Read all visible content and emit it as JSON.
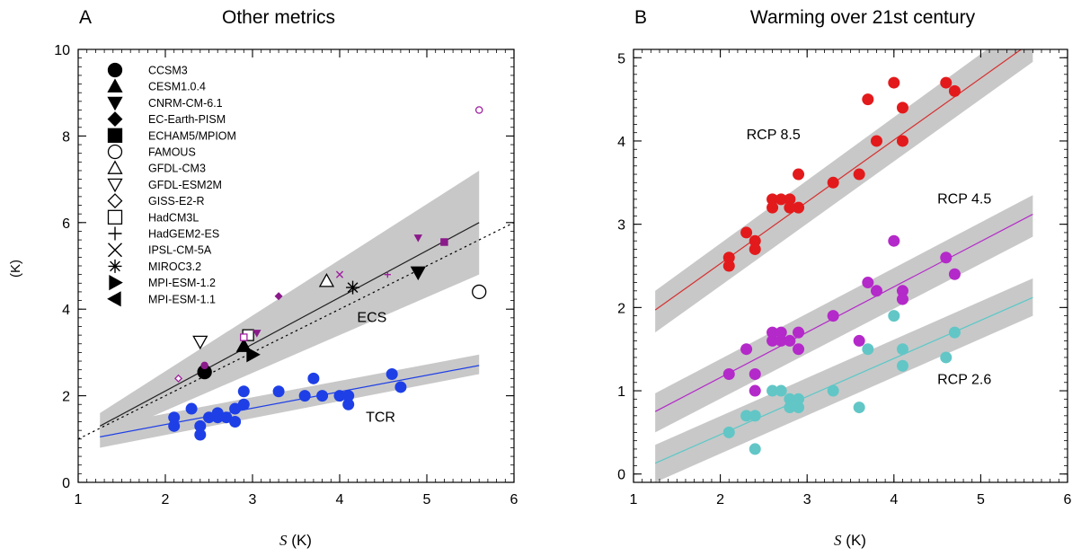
{
  "chart_data": [
    {
      "type": "scatter",
      "panel_letter": "A",
      "title": "Other metrics",
      "xlabel_symbol": "S",
      "xlabel_unit": "(K)",
      "ylabel": "(K)",
      "xlim": [
        1,
        6
      ],
      "ylim": [
        0,
        10
      ],
      "xticks": [
        "1",
        "2",
        "3",
        "4",
        "5",
        "6"
      ],
      "yticks": [
        "0",
        "2",
        "4",
        "6",
        "8",
        "10"
      ],
      "legend_position": "top-left",
      "legend": [
        {
          "label": "CCSM3",
          "marker": "circle",
          "fill": "filled"
        },
        {
          "label": "CESM1.0.4",
          "marker": "triangle-up",
          "fill": "filled"
        },
        {
          "label": "CNRM-CM-6.1",
          "marker": "triangle-down",
          "fill": "filled"
        },
        {
          "label": "EC-Earth-PISM",
          "marker": "diamond",
          "fill": "filled"
        },
        {
          "label": "ECHAM5/MPIOM",
          "marker": "square",
          "fill": "filled"
        },
        {
          "label": "FAMOUS",
          "marker": "circle",
          "fill": "open"
        },
        {
          "label": "GFDL-CM3",
          "marker": "triangle-up",
          "fill": "open"
        },
        {
          "label": "GFDL-ESM2M",
          "marker": "triangle-down",
          "fill": "open"
        },
        {
          "label": "GISS-E2-R",
          "marker": "diamond",
          "fill": "open"
        },
        {
          "label": "HadCM3L",
          "marker": "square",
          "fill": "open"
        },
        {
          "label": "HadGEM2-ES",
          "marker": "plus",
          "fill": "line"
        },
        {
          "label": "IPSL-CM-5A",
          "marker": "cross",
          "fill": "line"
        },
        {
          "label": "MIROC3.2",
          "marker": "asterisk",
          "fill": "line"
        },
        {
          "label": "MPI-ESM-1.2",
          "marker": "triangle-right",
          "fill": "filled"
        },
        {
          "label": "MPI-ESM-1.1",
          "marker": "triangle-left",
          "fill": "filled"
        }
      ],
      "series": [
        {
          "name": "ECS",
          "label_at": [
            4.2,
            3.7
          ],
          "color": "#000000",
          "fit": {
            "x": [
              1.25,
              5.6
            ],
            "y": [
              1.3,
              6.0
            ]
          },
          "band": {
            "lower": [
              [
                1.25,
                1.0
              ],
              [
                5.6,
                4.8
              ]
            ],
            "upper": [
              [
                1.25,
                1.6
              ],
              [
                5.6,
                7.2
              ]
            ]
          },
          "one_to_one": {
            "x": [
              1.0,
              6.0
            ],
            "y": [
              1.0,
              6.0
            ],
            "style": "dotted"
          },
          "points": [
            {
              "model": "CCSM3",
              "x": 2.45,
              "y": 2.55,
              "marker": "circle",
              "fill": "filled",
              "color": "#000000",
              "size": "large"
            },
            {
              "model": "CESM1.0.4",
              "x": 2.9,
              "y": 3.15,
              "marker": "triangle-up",
              "fill": "filled",
              "color": "#000000",
              "size": "large"
            },
            {
              "model": "CNRM-CM-6.1",
              "x": 4.9,
              "y": 4.85,
              "marker": "triangle-down",
              "fill": "filled",
              "color": "#000000",
              "size": "large"
            },
            {
              "model": "FAMOUS",
              "x": 5.6,
              "y": 4.4,
              "marker": "circle",
              "fill": "open",
              "color": "#000000",
              "size": "large"
            },
            {
              "model": "GFDL-CM3",
              "x": 3.85,
              "y": 4.65,
              "marker": "triangle-up",
              "fill": "open",
              "color": "#000000",
              "size": "large"
            },
            {
              "model": "GFDL-ESM2M",
              "x": 2.4,
              "y": 3.25,
              "marker": "triangle-down",
              "fill": "open",
              "color": "#000000",
              "size": "large"
            },
            {
              "model": "MIROC3.2",
              "x": 4.15,
              "y": 4.5,
              "marker": "asterisk",
              "fill": "line",
              "color": "#000000",
              "size": "large"
            },
            {
              "model": "MPI-ESM-1.2",
              "x": 3.0,
              "y": 2.95,
              "marker": "triangle-right",
              "fill": "filled",
              "color": "#000000",
              "size": "large"
            },
            {
              "model": "HadCM3L",
              "x": 2.95,
              "y": 3.4,
              "marker": "square",
              "fill": "open",
              "color": "#000000",
              "size": "medium"
            },
            {
              "model": "CCSM3",
              "x": 2.45,
              "y": 2.7,
              "marker": "circle",
              "fill": "filled",
              "color": "#8B1A8B",
              "size": "small"
            },
            {
              "model": "CNRM-CM-6.1",
              "x": 3.05,
              "y": 3.45,
              "marker": "triangle-down",
              "fill": "filled",
              "color": "#8B1A8B",
              "size": "small"
            },
            {
              "model": "CNRM-CM-6.1",
              "x": 4.9,
              "y": 5.65,
              "marker": "triangle-down",
              "fill": "filled",
              "color": "#8B1A8B",
              "size": "small"
            },
            {
              "model": "EC-Earth-PISM",
              "x": 3.3,
              "y": 4.3,
              "marker": "diamond",
              "fill": "filled",
              "color": "#8B1A8B",
              "size": "small"
            },
            {
              "model": "ECHAM5/MPIOM",
              "x": 5.2,
              "y": 5.55,
              "marker": "square",
              "fill": "filled",
              "color": "#8B1A8B",
              "size": "small"
            },
            {
              "model": "FAMOUS",
              "x": 5.6,
              "y": 8.6,
              "marker": "circle",
              "fill": "open",
              "color": "#A020A0",
              "size": "small"
            },
            {
              "model": "GISS-E2-R",
              "x": 2.15,
              "y": 2.4,
              "marker": "diamond",
              "fill": "open",
              "color": "#A020A0",
              "size": "small"
            },
            {
              "model": "HadCM3L",
              "x": 2.9,
              "y": 3.35,
              "marker": "square",
              "fill": "open",
              "color": "#A020A0",
              "size": "small"
            },
            {
              "model": "HadGEM2-ES",
              "x": 4.55,
              "y": 4.8,
              "marker": "plus",
              "fill": "line",
              "color": "#A020A0",
              "size": "small"
            },
            {
              "model": "IPSL-CM-5A",
              "x": 4.0,
              "y": 4.8,
              "marker": "cross",
              "fill": "line",
              "color": "#A020A0",
              "size": "small"
            }
          ]
        },
        {
          "name": "TCR",
          "label_at": [
            4.3,
            1.4
          ],
          "color": "#1E3FE6",
          "fit": {
            "x": [
              1.25,
              5.6
            ],
            "y": [
              1.05,
              2.7
            ]
          },
          "band": {
            "lower": [
              [
                1.25,
                0.8
              ],
              [
                5.6,
                2.5
              ]
            ],
            "upper": [
              [
                1.25,
                1.3
              ],
              [
                5.6,
                2.95
              ]
            ]
          },
          "x": [
            2.1,
            2.1,
            2.3,
            2.4,
            2.4,
            2.5,
            2.6,
            2.6,
            2.7,
            2.8,
            2.8,
            2.9,
            2.9,
            3.3,
            3.6,
            3.7,
            3.8,
            4.0,
            4.1,
            4.1,
            4.6,
            4.7
          ],
          "y": [
            1.3,
            1.5,
            1.7,
            1.1,
            1.3,
            1.5,
            1.5,
            1.6,
            1.5,
            1.4,
            1.7,
            1.8,
            2.1,
            2.1,
            2.0,
            2.4,
            2.0,
            2.0,
            1.8,
            2.0,
            2.5,
            2.2
          ]
        }
      ]
    },
    {
      "type": "scatter",
      "panel_letter": "B",
      "title": "Warming over 21st century",
      "xlabel_symbol": "S",
      "xlabel_unit": "(K)",
      "xlim": [
        1,
        6
      ],
      "ylim": [
        -0.1,
        5.1
      ],
      "xticks": [
        "1",
        "2",
        "3",
        "4",
        "5",
        "6"
      ],
      "yticks": [
        "0",
        "1",
        "2",
        "3",
        "4",
        "5"
      ],
      "series": [
        {
          "name": "RCP 8.5",
          "label_at": [
            2.3,
            4.02
          ],
          "color": "#E31A1C",
          "line_color": "#D73030",
          "fit": {
            "x": [
              1.25,
              5.6
            ],
            "y": [
              1.97,
              5.2
            ]
          },
          "band": {
            "lower": [
              [
                1.25,
                1.7
              ],
              [
                5.6,
                4.95
              ]
            ],
            "upper": [
              [
                1.25,
                2.2
              ],
              [
                5.6,
                5.5
              ]
            ]
          },
          "x": [
            2.1,
            2.1,
            2.3,
            2.4,
            2.4,
            2.6,
            2.6,
            2.7,
            2.8,
            2.8,
            2.9,
            2.9,
            3.3,
            3.6,
            3.7,
            3.8,
            4.0,
            4.1,
            4.1,
            4.6,
            4.7
          ],
          "y": [
            2.5,
            2.6,
            2.9,
            2.7,
            2.8,
            3.2,
            3.3,
            3.3,
            3.2,
            3.3,
            3.2,
            3.6,
            3.5,
            3.6,
            4.5,
            4.0,
            4.7,
            4.4,
            4.0,
            4.7,
            4.6
          ]
        },
        {
          "name": "RCP 4.5",
          "label_at": [
            4.5,
            3.25
          ],
          "color": "#B429C9",
          "line_color": "#B429C9",
          "fit": {
            "x": [
              1.25,
              5.6
            ],
            "y": [
              0.75,
              3.12
            ]
          },
          "band": {
            "lower": [
              [
                1.25,
                0.5
              ],
              [
                5.6,
                2.85
              ]
            ],
            "upper": [
              [
                1.25,
                0.97
              ],
              [
                5.6,
                3.35
              ]
            ]
          },
          "x": [
            2.1,
            2.3,
            2.4,
            2.4,
            2.6,
            2.6,
            2.7,
            2.7,
            2.8,
            2.9,
            2.9,
            3.3,
            3.6,
            3.7,
            3.8,
            4.0,
            4.1,
            4.1,
            4.6,
            4.7
          ],
          "y": [
            1.2,
            1.5,
            1.0,
            1.2,
            1.6,
            1.7,
            1.6,
            1.7,
            1.6,
            1.5,
            1.7,
            1.9,
            1.6,
            2.3,
            2.2,
            2.8,
            2.2,
            2.1,
            2.6,
            2.4
          ]
        },
        {
          "name": "RCP 2.6",
          "label_at": [
            4.5,
            1.08
          ],
          "color": "#62C6C6",
          "line_color": "#5BC8C8",
          "fit": {
            "x": [
              1.25,
              5.6
            ],
            "y": [
              0.13,
              2.12
            ]
          },
          "band": {
            "lower": [
              [
                1.25,
                -0.1
              ],
              [
                5.6,
                1.9
              ]
            ],
            "upper": [
              [
                1.25,
                0.35
              ],
              [
                5.6,
                2.35
              ]
            ]
          },
          "x": [
            2.1,
            2.3,
            2.4,
            2.4,
            2.6,
            2.7,
            2.8,
            2.8,
            2.9,
            2.9,
            3.3,
            3.6,
            3.7,
            4.0,
            4.1,
            4.1,
            4.6,
            4.7
          ],
          "y": [
            0.5,
            0.7,
            0.3,
            0.7,
            1.0,
            1.0,
            0.9,
            0.8,
            0.8,
            0.9,
            1.0,
            0.8,
            1.5,
            1.9,
            1.5,
            1.3,
            1.4,
            1.7
          ]
        }
      ]
    }
  ]
}
